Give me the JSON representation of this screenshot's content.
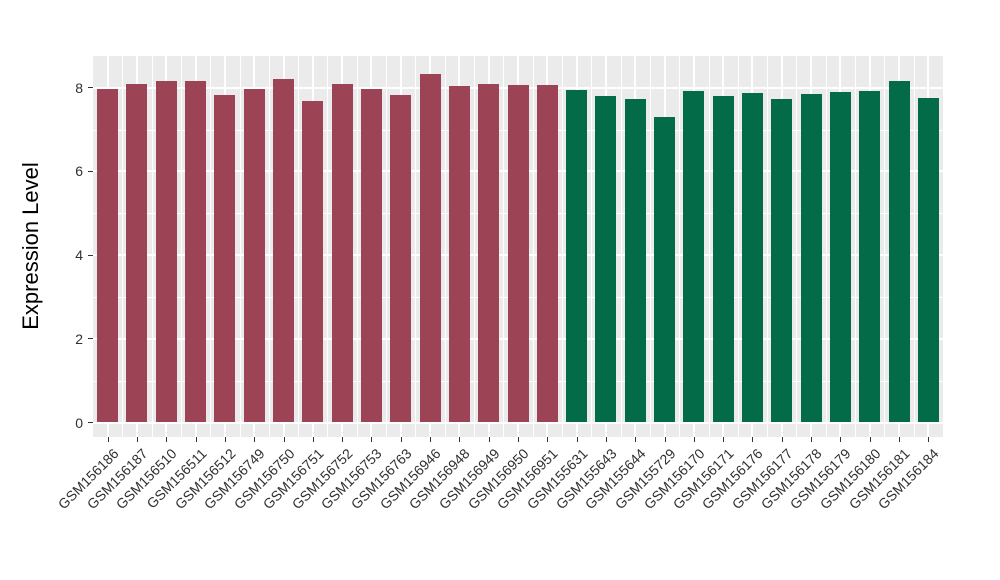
{
  "figure": {
    "background": "#FFFFFF",
    "panel_background": "#EBEBEB",
    "grid_color": "#FFFFFF",
    "tick_color": "#333333",
    "axis_text_color": "#303030",
    "axis_title_color": "#000000"
  },
  "chart_data": {
    "type": "bar",
    "title": "",
    "xlabel": "",
    "ylabel": "Expression Level",
    "legend_position": "none",
    "grid": true,
    "y_axis": {
      "major_ticks": [
        0,
        2,
        4,
        6,
        8
      ],
      "minor_ticks": [
        1,
        3,
        5,
        7
      ],
      "range": [
        -0.35,
        8.78
      ]
    },
    "categories": [
      "GSM156186",
      "GSM156187",
      "GSM156510",
      "GSM156511",
      "GSM156512",
      "GSM156749",
      "GSM156750",
      "GSM156751",
      "GSM156752",
      "GSM156753",
      "GSM156763",
      "GSM156946",
      "GSM156948",
      "GSM156949",
      "GSM156950",
      "GSM156951",
      "GSM155631",
      "GSM155643",
      "GSM155644",
      "GSM155729",
      "GSM156170",
      "GSM156171",
      "GSM156176",
      "GSM156177",
      "GSM156178",
      "GSM156179",
      "GSM156180",
      "GSM156181",
      "GSM156184"
    ],
    "values": [
      7.96,
      8.1,
      8.17,
      8.17,
      7.83,
      7.96,
      8.2,
      7.68,
      8.09,
      7.96,
      7.83,
      8.33,
      8.04,
      8.09,
      8.06,
      8.06,
      7.95,
      7.79,
      7.72,
      7.29,
      7.92,
      7.8,
      7.87,
      7.72,
      7.85,
      7.89,
      7.92,
      8.16,
      7.76
    ],
    "groups": [
      "group1",
      "group1",
      "group1",
      "group1",
      "group1",
      "group1",
      "group1",
      "group1",
      "group1",
      "group1",
      "group1",
      "group1",
      "group1",
      "group1",
      "group1",
      "group1",
      "group2",
      "group2",
      "group2",
      "group2",
      "group2",
      "group2",
      "group2",
      "group2",
      "group2",
      "group2",
      "group2",
      "group2",
      "group2"
    ],
    "group_colors": {
      "group1": "#9C4356",
      "group2": "#046B49"
    }
  }
}
